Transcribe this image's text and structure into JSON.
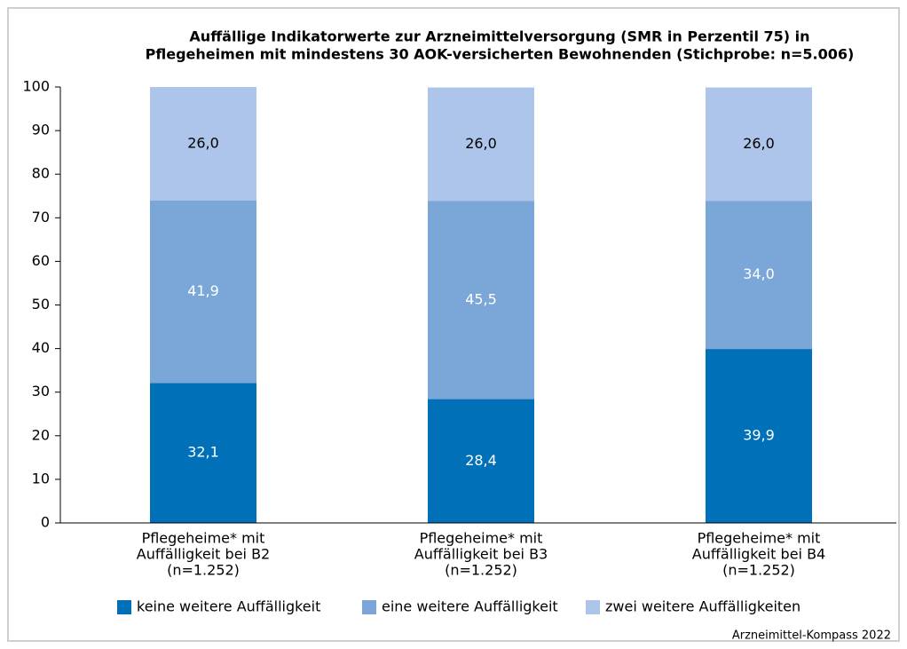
{
  "chart_data": {
    "type": "stacked-bar",
    "title": [
      "Auffällige Indikatorwerte zur Arzneimittelversorgung (SMR in Perzentil 75) in",
      "Pflegeheimen mit mindestens 30 AOK-versicherten Bewohnenden (Stichprobe: n=5.006)"
    ],
    "categories": [
      [
        "Pflegeheime* mit",
        "Auffälligkeit bei B2",
        "(n=1.252)"
      ],
      [
        "Pflegeheime* mit",
        "Auffälligkeit bei B3",
        "(n=1.252)"
      ],
      [
        "Pflegeheime* mit",
        "Auffälligkeit bei B4",
        "(n=1.252)"
      ]
    ],
    "series": [
      {
        "name": "keine weitere Auffälligkeit",
        "color": "#0070b8",
        "values": [
          32.1,
          28.4,
          39.9
        ],
        "value_labels": [
          "32,1",
          "28,4",
          "39,9"
        ]
      },
      {
        "name": "eine weitere Auffälligkeit",
        "color": "#7ba6d8",
        "values": [
          41.9,
          45.5,
          34.0
        ],
        "value_labels": [
          "41,9",
          "45,5",
          "34,0"
        ]
      },
      {
        "name": "zwei weitere Auffälligkeiten",
        "color": "#adc5ea",
        "values": [
          26.0,
          26.0,
          26.0
        ],
        "value_labels": [
          "26,0",
          "26,0",
          "26,0"
        ]
      }
    ],
    "ylim": [
      0,
      100
    ],
    "yticks": [
      0,
      10,
      20,
      30,
      40,
      50,
      60,
      70,
      80,
      90,
      100
    ],
    "grid": false,
    "legend": "bottom",
    "source": "Arzneimittel-Kompass 2022"
  }
}
